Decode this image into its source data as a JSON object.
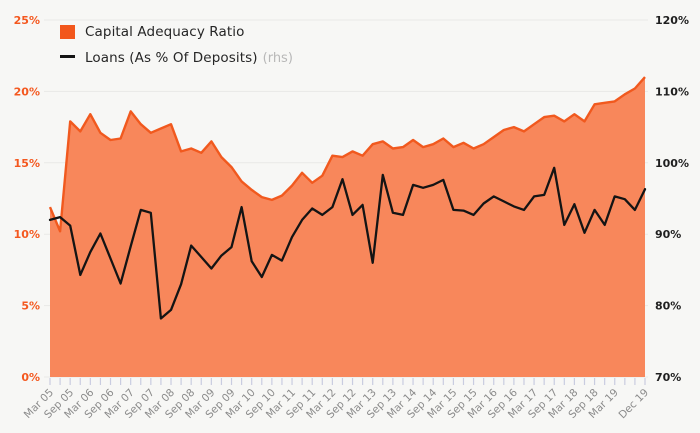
{
  "legend": {
    "series1_label": "Capital Adequacy Ratio",
    "series2_label": "Loans (As % Of Deposits)",
    "series2_suffix": "(rhs)"
  },
  "colors": {
    "background": "#f7f7f5",
    "grid": "#e9e9e6",
    "area_fill": "#f8875b",
    "area_stroke": "#f1591e",
    "line": "#141414",
    "left_axis_labels": "#f4581f",
    "right_axis_labels": "#1f1f1f",
    "x_axis_labels": "#8b8b8b",
    "tick_marks": "#c9cce0",
    "legend_text": "#262626",
    "legend_suffix": "#b8b8b8"
  },
  "chart_data": {
    "type": "area",
    "x": [
      "Mar 05",
      "Jun 05",
      "Sep 05",
      "Dec 05",
      "Mar 06",
      "Jun 06",
      "Sep 06",
      "Dec 06",
      "Mar 07",
      "Jun 07",
      "Sep 07",
      "Dec 07",
      "Mar 08",
      "Jun 08",
      "Sep 08",
      "Dec 08",
      "Mar 09",
      "Jun 09",
      "Sep 09",
      "Dec 09",
      "Mar 10",
      "Jun 10",
      "Sep 10",
      "Dec 10",
      "Mar 11",
      "Jun 11",
      "Sep 11",
      "Dec 11",
      "Mar 12",
      "Jun 12",
      "Sep 12",
      "Dec 12",
      "Mar 13",
      "Jun 13",
      "Sep 13",
      "Dec 13",
      "Mar 14",
      "Jun 14",
      "Sep 14",
      "Dec 14",
      "Mar 15",
      "Jun 15",
      "Sep 15",
      "Dec 15",
      "Mar 16",
      "Jun 16",
      "Sep 16",
      "Dec 16",
      "Mar 17",
      "Jun 17",
      "Sep 17",
      "Dec 17",
      "Mar 18",
      "Jun 18",
      "Sep 18",
      "Dec 18",
      "Mar 19",
      "Jun 19",
      "Sep 19",
      "Dec 19"
    ],
    "x_labeled_ticks": [
      "Mar 05",
      "Sep 05",
      "Mar 06",
      "Sep 06",
      "Mar 07",
      "Sep 07",
      "Mar 08",
      "Sep 08",
      "Mar 09",
      "Sep 09",
      "Mar 10",
      "Sep 10",
      "Mar 11",
      "Sep 11",
      "Mar 12",
      "Sep 12",
      "Mar 13",
      "Sep 13",
      "Mar 14",
      "Sep 14",
      "Mar 15",
      "Sep 15",
      "Mar 16",
      "Sep 16",
      "Mar 17",
      "Sep 17",
      "Mar 18",
      "Sep 18",
      "Mar 19",
      "Dec 19"
    ],
    "series": [
      {
        "name": "Capital Adequacy Ratio",
        "type": "area",
        "axis": "left",
        "values": [
          11.9,
          10.2,
          17.9,
          17.2,
          18.4,
          17.1,
          16.6,
          16.7,
          18.6,
          17.7,
          17.1,
          17.4,
          17.7,
          15.8,
          16.0,
          15.7,
          16.5,
          15.4,
          14.7,
          13.7,
          13.1,
          12.6,
          12.4,
          12.7,
          13.4,
          14.3,
          13.6,
          14.1,
          15.5,
          15.4,
          15.8,
          15.5,
          16.3,
          16.5,
          16.0,
          16.1,
          16.6,
          16.1,
          16.3,
          16.7,
          16.1,
          16.4,
          16.0,
          16.3,
          16.8,
          17.3,
          17.5,
          17.2,
          17.7,
          18.2,
          18.3,
          17.9,
          18.4,
          17.9,
          19.1,
          19.2,
          19.3,
          19.8,
          20.2,
          21.0
        ]
      },
      {
        "name": "Loans (As % Of Deposits)",
        "type": "line",
        "axis": "right",
        "values": [
          92.0,
          92.4,
          91.2,
          84.3,
          87.5,
          90.1,
          86.6,
          83.1,
          88.3,
          93.4,
          93.0,
          78.2,
          79.4,
          83.0,
          88.4,
          86.8,
          85.2,
          87.0,
          88.2,
          93.8,
          86.2,
          84.0,
          87.1,
          86.3,
          89.6,
          92.0,
          93.6,
          92.7,
          93.8,
          97.7,
          92.7,
          94.1,
          86.0,
          98.3,
          93.0,
          92.7,
          96.9,
          96.5,
          96.9,
          97.6,
          93.4,
          93.3,
          92.7,
          94.3,
          95.3,
          94.6,
          93.9,
          93.4,
          95.3,
          95.5,
          99.3,
          91.3,
          94.2,
          90.2,
          93.4,
          91.3,
          95.3,
          94.9,
          93.4,
          96.3
        ]
      }
    ],
    "left_axis": {
      "min": 0,
      "max": 25,
      "tick_step": 5,
      "tick_labels": [
        "0%",
        "5%",
        "10%",
        "15%",
        "20%",
        "25%"
      ]
    },
    "right_axis": {
      "min": 70,
      "max": 120,
      "tick_step": 10,
      "tick_labels": [
        "70%",
        "80%",
        "90%",
        "100%",
        "110%",
        "120%"
      ]
    },
    "grid": "horizontal",
    "legend_position": "top-left"
  }
}
